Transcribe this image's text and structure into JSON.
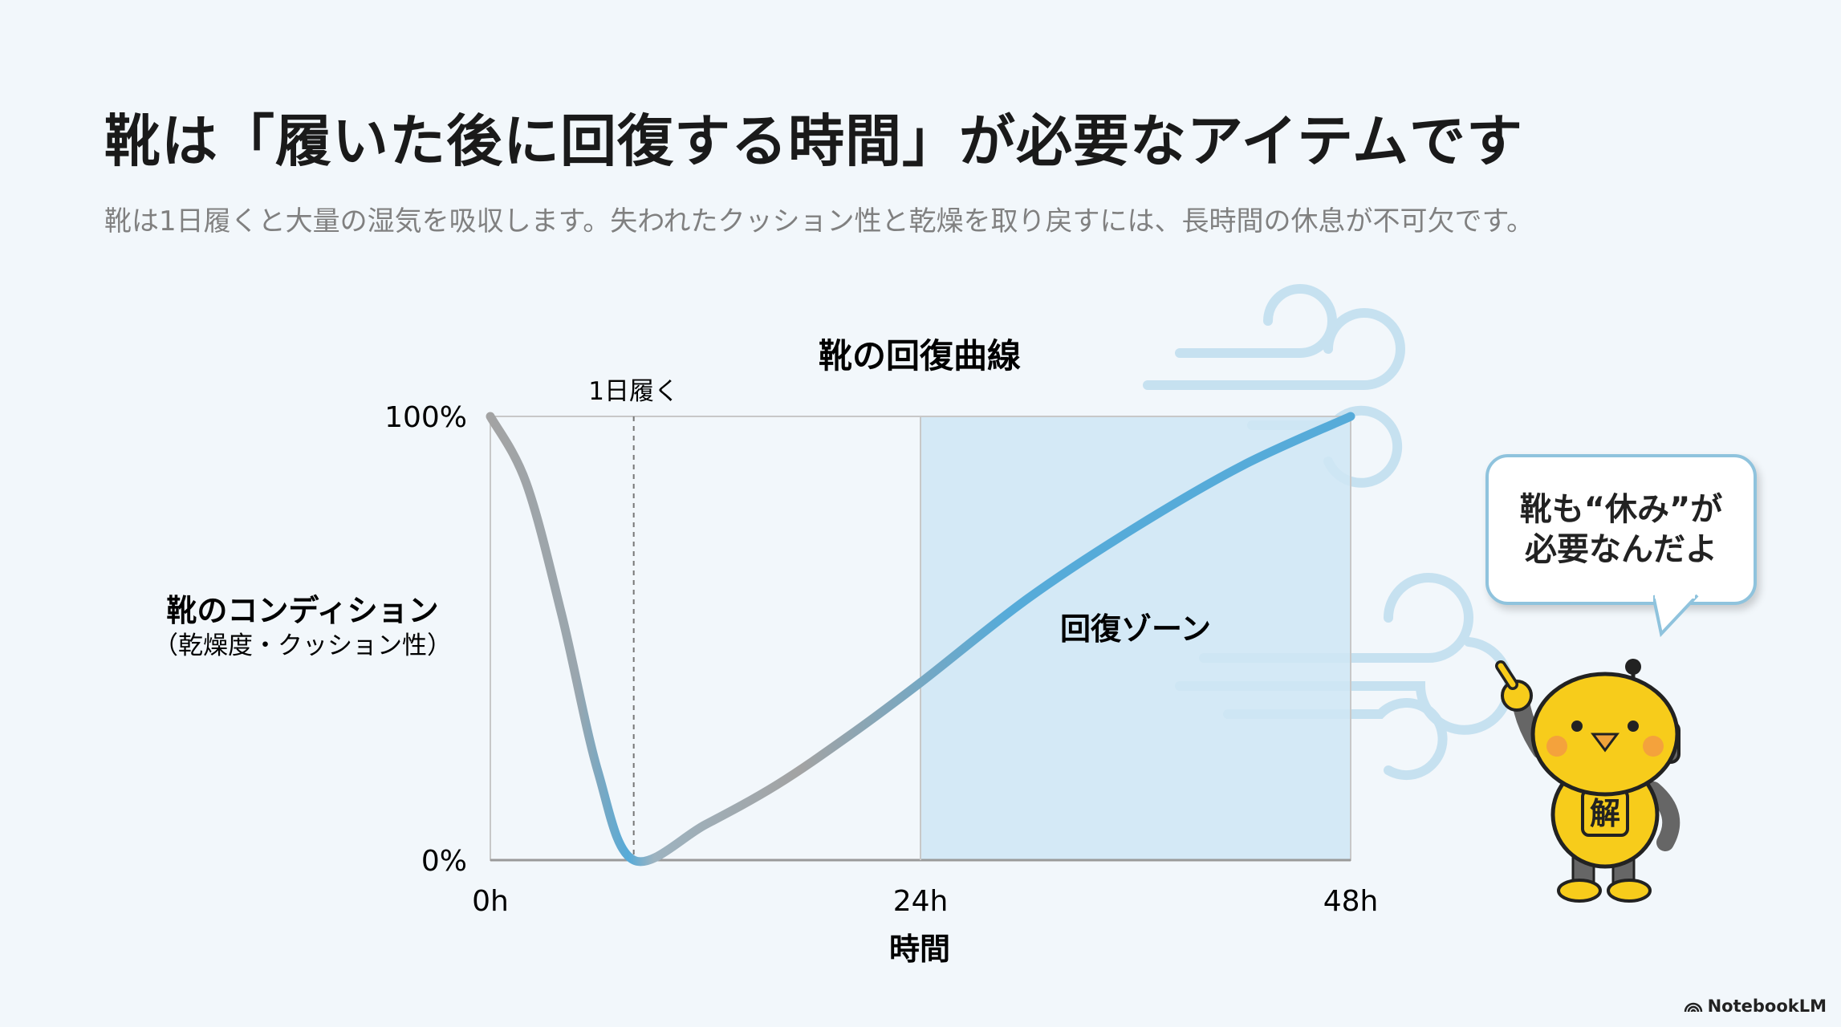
{
  "header": {
    "title": "靴は「履いた後に回復する時間」が必要なアイテムです",
    "subtitle": "靴は1日履くと大量の湿気を吸収します。失われたクッション性と乾燥を取り戻すには、長時間の休息が不可欠です。"
  },
  "chart_data": {
    "type": "line",
    "title": "靴の回復曲線",
    "xlabel": "時間",
    "ylabel": "靴のコンディション",
    "ylabel_sub": "（乾燥度・クッション性）",
    "x_ticks": [
      "0h",
      "24h",
      "48h"
    ],
    "y_ticks": [
      "0%",
      "100%"
    ],
    "xlim": [
      0,
      48
    ],
    "ylim": [
      0,
      100
    ],
    "grid": false,
    "series": [
      {
        "x": [
          0,
          2,
          4,
          6,
          8,
          12,
          16,
          20,
          24,
          30,
          36,
          42,
          48
        ],
        "y": [
          100,
          85,
          55,
          20,
          0,
          8,
          17,
          28,
          40,
          59,
          75,
          89,
          100
        ]
      }
    ],
    "annotations": {
      "marker_label": "1日履く",
      "marker_x": 8,
      "zone_label": "回復ゾーン",
      "zone_range": [
        24,
        48
      ]
    },
    "colors": {
      "line_gray": "#a3a3a3",
      "line_blue": "#56abd9",
      "zone": "#cfe6f4"
    }
  },
  "bubble": {
    "line1": "靴も“休み”が",
    "line2": "必要なんだよ"
  },
  "mascot": {
    "badge": "解"
  },
  "footer": {
    "logo": "NotebookLM"
  }
}
